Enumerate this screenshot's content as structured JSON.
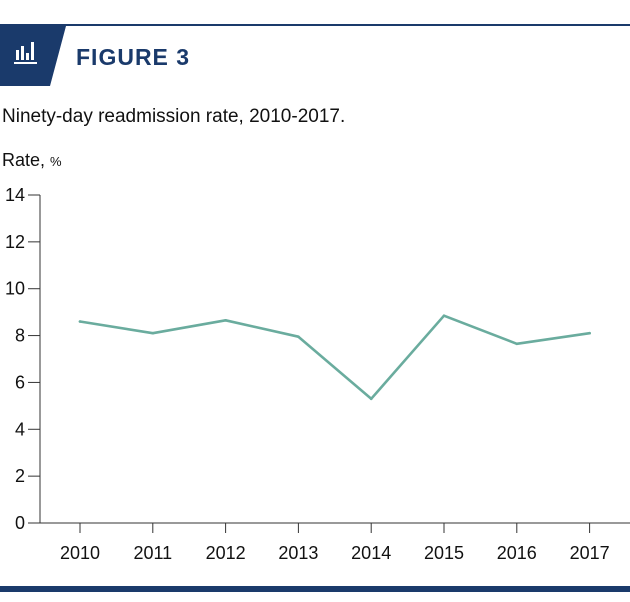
{
  "header": {
    "figure_label": "FIGURE 3",
    "icon": "bar-chart-icon",
    "accent_color": "#1a3a6b"
  },
  "subtitle": "Ninety-day readmission rate, 2010-2017.",
  "y_axis_title": {
    "text": "Rate,",
    "unit": "%"
  },
  "chart_data": {
    "type": "line",
    "title": "Ninety-day readmission rate, 2010-2017.",
    "xlabel": "",
    "ylabel": "Rate, %",
    "x": [
      "2010",
      "2011",
      "2012",
      "2013",
      "2014",
      "2015",
      "2016",
      "2017"
    ],
    "series": [
      {
        "values": [
          8.6,
          8.1,
          8.65,
          7.95,
          5.3,
          8.85,
          7.65,
          8.1
        ],
        "color": "#6aac9e"
      }
    ],
    "ylim": [
      0,
      14
    ],
    "yticks": [
      0,
      2,
      4,
      6,
      8,
      10,
      12,
      14
    ],
    "grid": false,
    "legend": "none"
  }
}
